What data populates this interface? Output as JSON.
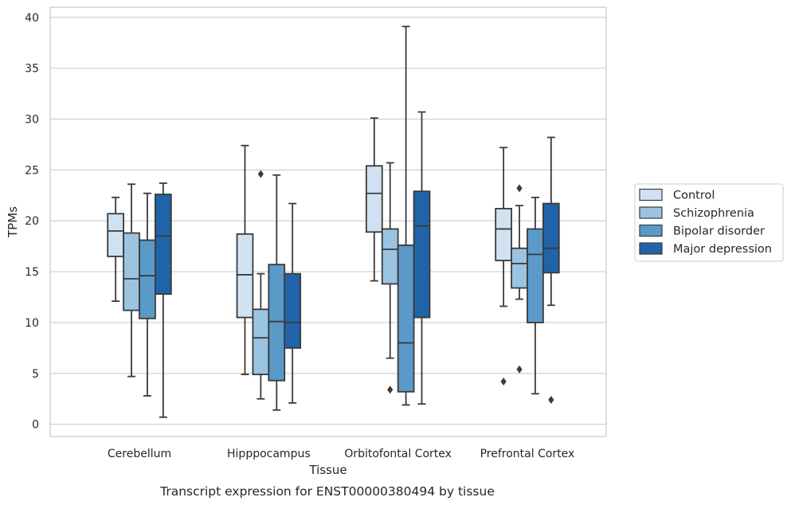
{
  "caption": "Transcript expression for ENST00000380494 by tissue",
  "chart_data": {
    "type": "boxplot",
    "title": "",
    "xlabel": "Tissue",
    "ylabel": "TPMs",
    "ylim": [
      -1.2,
      41
    ],
    "yticks": [
      0,
      5,
      10,
      15,
      20,
      25,
      30,
      35,
      40
    ],
    "grid": true,
    "legend_position": "right",
    "categories": [
      "Cerebellum",
      "Hipppocampus",
      "Orbitofontal Cortex",
      "Prefrontal Cortex"
    ],
    "series": [
      {
        "name": "Control",
        "color": "#d0e2f2",
        "boxes": [
          {
            "whislo": 12.1,
            "q1": 16.5,
            "med": 19.0,
            "q3": 20.7,
            "whishi": 22.3,
            "fliers": []
          },
          {
            "whislo": 4.9,
            "q1": 10.5,
            "med": 14.7,
            "q3": 18.7,
            "whishi": 27.4,
            "fliers": []
          },
          {
            "whislo": 14.1,
            "q1": 18.9,
            "med": 22.7,
            "q3": 25.4,
            "whishi": 30.1,
            "fliers": []
          },
          {
            "whislo": 11.6,
            "q1": 16.1,
            "med": 19.2,
            "q3": 21.2,
            "whishi": 27.2,
            "fliers": [
              4.2
            ]
          }
        ]
      },
      {
        "name": "Schizophrenia",
        "color": "#9bc4e0",
        "boxes": [
          {
            "whislo": 4.7,
            "q1": 11.2,
            "med": 14.3,
            "q3": 18.8,
            "whishi": 23.6,
            "fliers": []
          },
          {
            "whislo": 2.5,
            "q1": 4.9,
            "med": 8.5,
            "q3": 11.3,
            "whishi": 14.8,
            "fliers": [
              24.6
            ]
          },
          {
            "whislo": 6.5,
            "q1": 13.8,
            "med": 17.2,
            "q3": 19.2,
            "whishi": 25.7,
            "fliers": [
              3.4
            ]
          },
          {
            "whislo": 12.3,
            "q1": 13.4,
            "med": 15.8,
            "q3": 17.3,
            "whishi": 21.5,
            "fliers": [
              23.2,
              5.4
            ]
          }
        ]
      },
      {
        "name": "Bipolar disorder",
        "color": "#5a9ac8",
        "boxes": [
          {
            "whislo": 2.8,
            "q1": 10.4,
            "med": 14.6,
            "q3": 18.1,
            "whishi": 22.7,
            "fliers": []
          },
          {
            "whislo": 1.4,
            "q1": 4.3,
            "med": 10.1,
            "q3": 15.7,
            "whishi": 24.5,
            "fliers": []
          },
          {
            "whislo": 1.9,
            "q1": 3.2,
            "med": 8.0,
            "q3": 17.6,
            "whishi": 39.1,
            "fliers": []
          },
          {
            "whislo": 3.0,
            "q1": 10.0,
            "med": 16.7,
            "q3": 19.2,
            "whishi": 22.3,
            "fliers": []
          }
        ]
      },
      {
        "name": "Major depression",
        "color": "#2163a8",
        "boxes": [
          {
            "whislo": 0.7,
            "q1": 12.8,
            "med": 18.5,
            "q3": 22.6,
            "whishi": 23.7,
            "fliers": []
          },
          {
            "whislo": 2.1,
            "q1": 7.5,
            "med": 10.0,
            "q3": 14.8,
            "whishi": 21.7,
            "fliers": []
          },
          {
            "whislo": 2.0,
            "q1": 10.5,
            "med": 19.5,
            "q3": 22.9,
            "whishi": 30.7,
            "fliers": []
          },
          {
            "whislo": 11.7,
            "q1": 14.9,
            "med": 17.3,
            "q3": 21.7,
            "whishi": 28.2,
            "fliers": [
              2.4
            ]
          }
        ]
      }
    ]
  }
}
